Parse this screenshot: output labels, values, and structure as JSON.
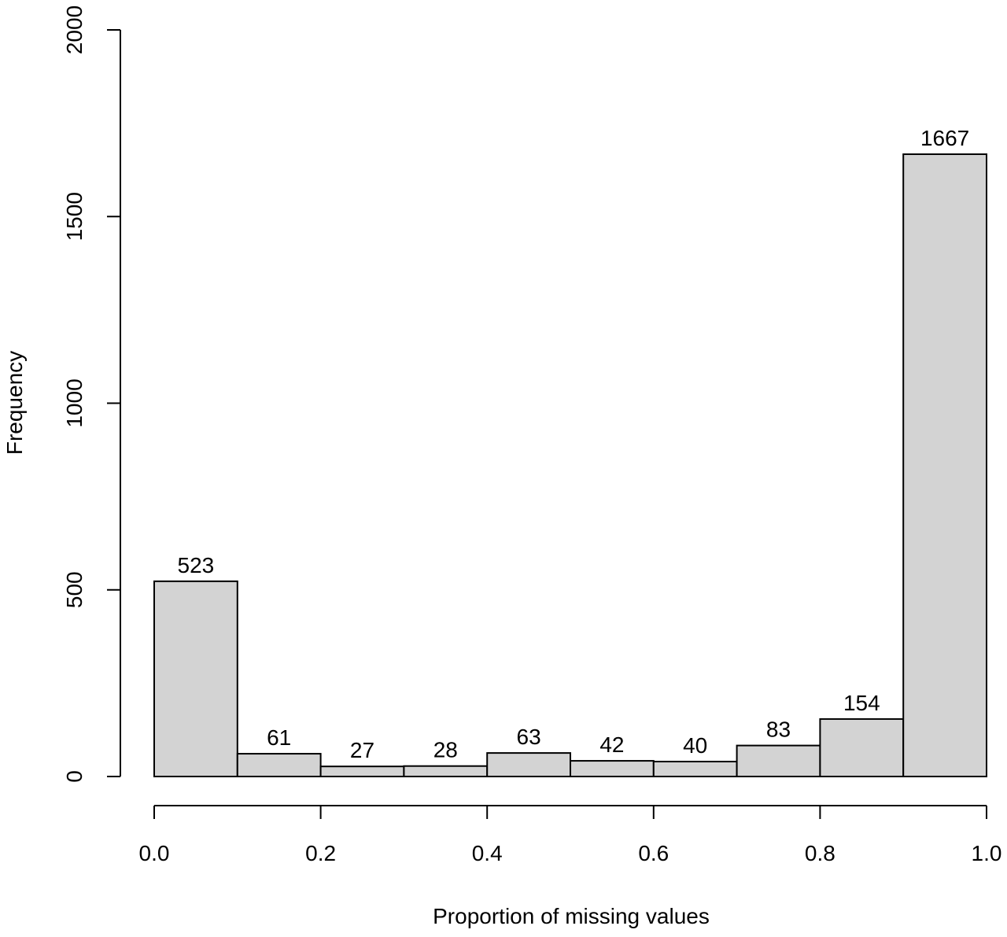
{
  "chart_data": {
    "type": "bar",
    "title": "",
    "xlabel": "Proportion of missing values",
    "ylabel": "Frequency",
    "bins": [
      {
        "from": 0.0,
        "to": 0.1,
        "value": 523,
        "label": "523"
      },
      {
        "from": 0.1,
        "to": 0.2,
        "value": 61,
        "label": "61"
      },
      {
        "from": 0.2,
        "to": 0.3,
        "value": 27,
        "label": "27"
      },
      {
        "from": 0.3,
        "to": 0.4,
        "value": 28,
        "label": "28"
      },
      {
        "from": 0.4,
        "to": 0.5,
        "value": 63,
        "label": "63"
      },
      {
        "from": 0.5,
        "to": 0.6,
        "value": 42,
        "label": "42"
      },
      {
        "from": 0.6,
        "to": 0.7,
        "value": 40,
        "label": "40"
      },
      {
        "from": 0.7,
        "to": 0.8,
        "value": 83,
        "label": "83"
      },
      {
        "from": 0.8,
        "to": 0.9,
        "value": 154,
        "label": "154"
      },
      {
        "from": 0.9,
        "to": 1.0,
        "value": 1667,
        "label": "1667"
      }
    ],
    "xlim": [
      0,
      1
    ],
    "ylim": [
      0,
      2000
    ],
    "x_ticks": [
      {
        "value": 0.0,
        "label": "0.0"
      },
      {
        "value": 0.2,
        "label": "0.2"
      },
      {
        "value": 0.4,
        "label": "0.4"
      },
      {
        "value": 0.6,
        "label": "0.6"
      },
      {
        "value": 0.8,
        "label": "0.8"
      },
      {
        "value": 1.0,
        "label": "1.0"
      }
    ],
    "y_ticks": [
      {
        "value": 0,
        "label": "0"
      },
      {
        "value": 500,
        "label": "500"
      },
      {
        "value": 1000,
        "label": "1000"
      },
      {
        "value": 1500,
        "label": "1500"
      },
      {
        "value": 2000,
        "label": "2000"
      }
    ],
    "grid": false,
    "bar_fill": "#d3d3d3",
    "bar_stroke": "#000000"
  }
}
